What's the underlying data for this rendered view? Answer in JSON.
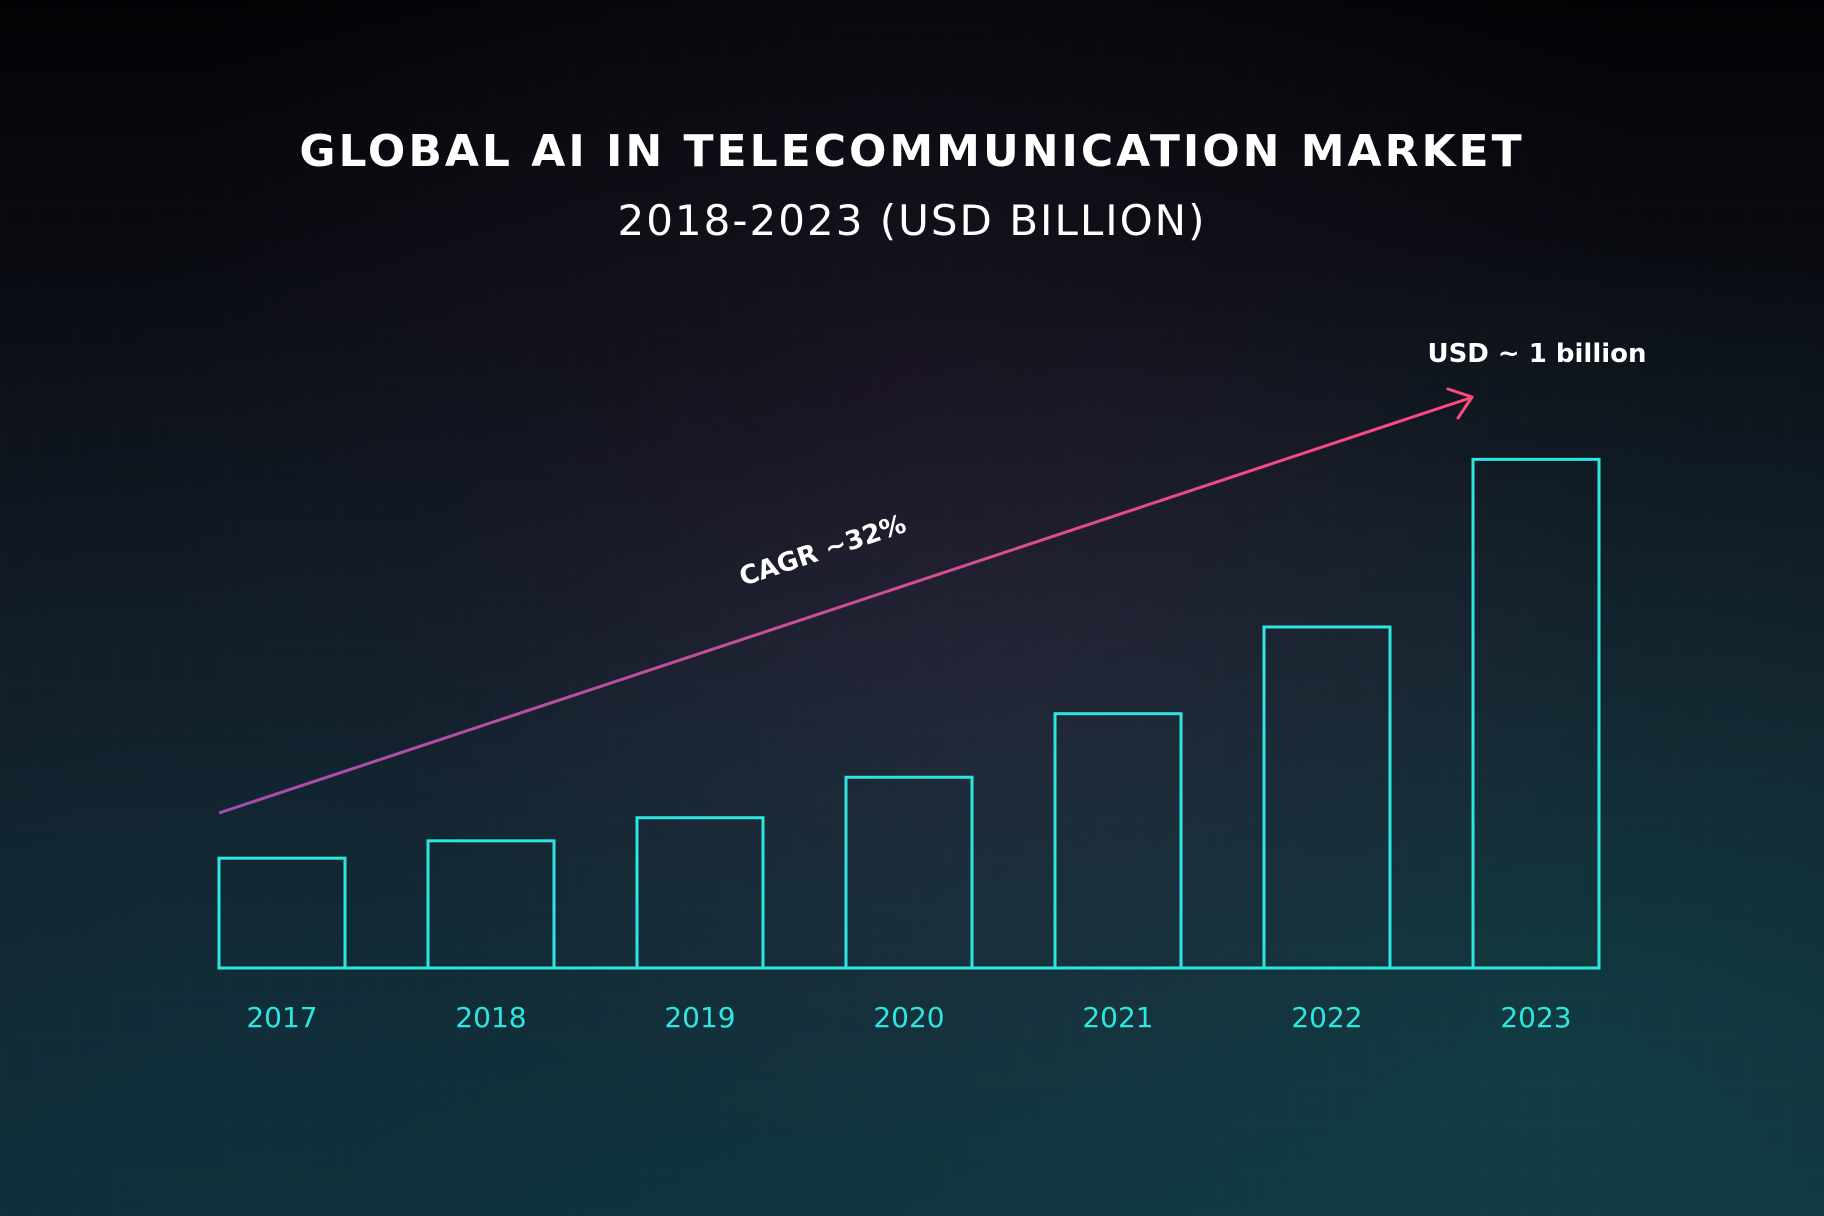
{
  "title": "GLOBAL AI IN TELECOMMUNICATION MARKET",
  "subtitle": "2018-2023 (USD BILLION)",
  "colors": {
    "bar_stroke": "#2ee6e0",
    "tick_label": "#2ee6e0",
    "arrow_start": "#a04fb0",
    "arrow_end": "#ff4a7d",
    "text": "#ffffff"
  },
  "chart_data": {
    "type": "bar",
    "categories": [
      "2017",
      "2018",
      "2019",
      "2020",
      "2021",
      "2022",
      "2023"
    ],
    "values": [
      0.19,
      0.22,
      0.26,
      0.33,
      0.44,
      0.59,
      0.88
    ],
    "ylim": [
      0,
      1
    ],
    "title": "GLOBAL AI IN TELECOMMUNICATION MARKET",
    "subtitle": "2018-2023 (USD BILLION)",
    "xlabel": "",
    "ylabel": "",
    "grid": false,
    "annotations": {
      "cagr_label": "CAGR ~32%",
      "end_label": "USD ~ 1 billion"
    }
  }
}
